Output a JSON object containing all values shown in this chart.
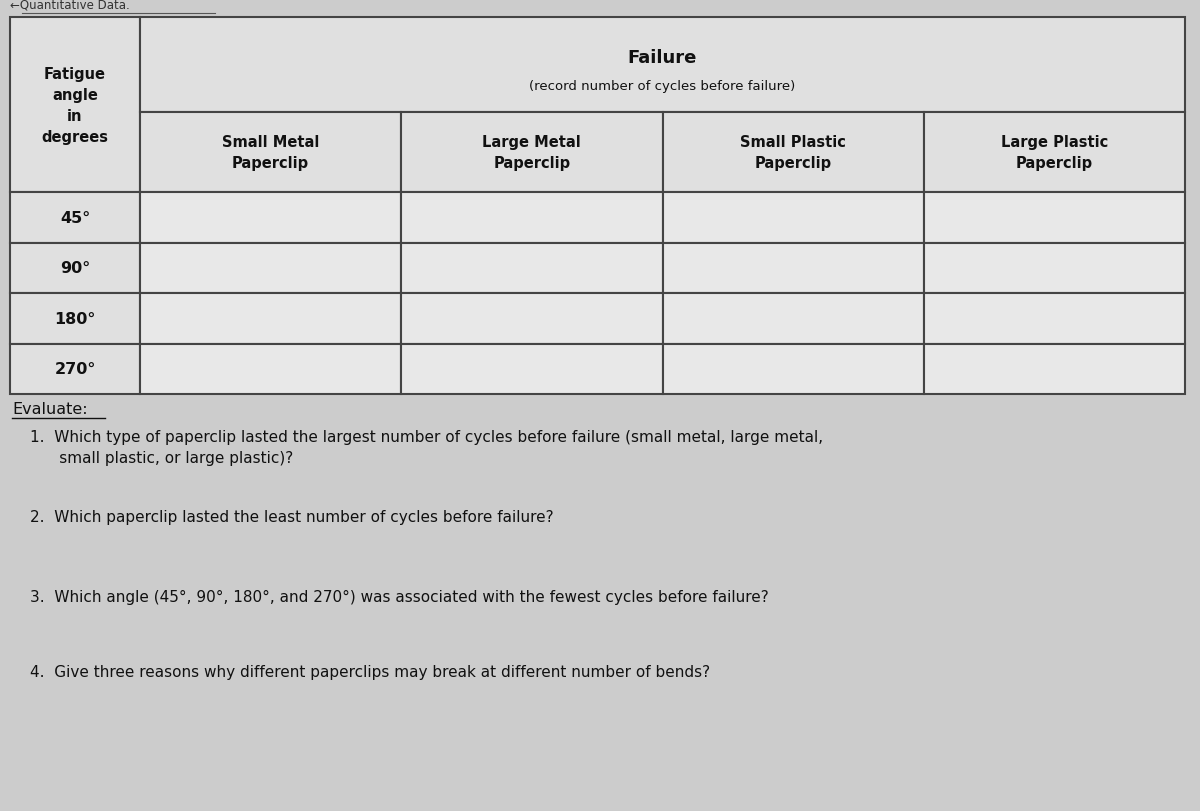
{
  "bg_color": "#cccccc",
  "cell_bg": "#e8e8e8",
  "header_bg": "#e0e0e0",
  "border_color": "#444444",
  "text_color": "#111111",
  "header_title": "Failure",
  "header_subtitle": "(record number of cycles before failure)",
  "row_header": "Fatigue\nangle\nin\ndegrees",
  "col_headers": [
    "Small Metal\nPaperclip",
    "Large Metal\nPaperclip",
    "Small Plastic\nPaperclip",
    "Large Plastic\nPaperclip"
  ],
  "row_labels": [
    "45°",
    "90°",
    "180°",
    "270°"
  ],
  "evaluate_label": "Evaluate:",
  "questions": [
    "1.  Which type of paperclip lasted the largest number of cycles before failure (small metal, large metal,\n      small plastic, or large plastic)?",
    "2.  Which paperclip lasted the least number of cycles before failure?",
    "3.  Which angle (45°, 90°, 180°, and 270°) was associated with the fewest cycles before failure?",
    "4.  Give three reasons why different paperclips may break at different number of bends?"
  ]
}
